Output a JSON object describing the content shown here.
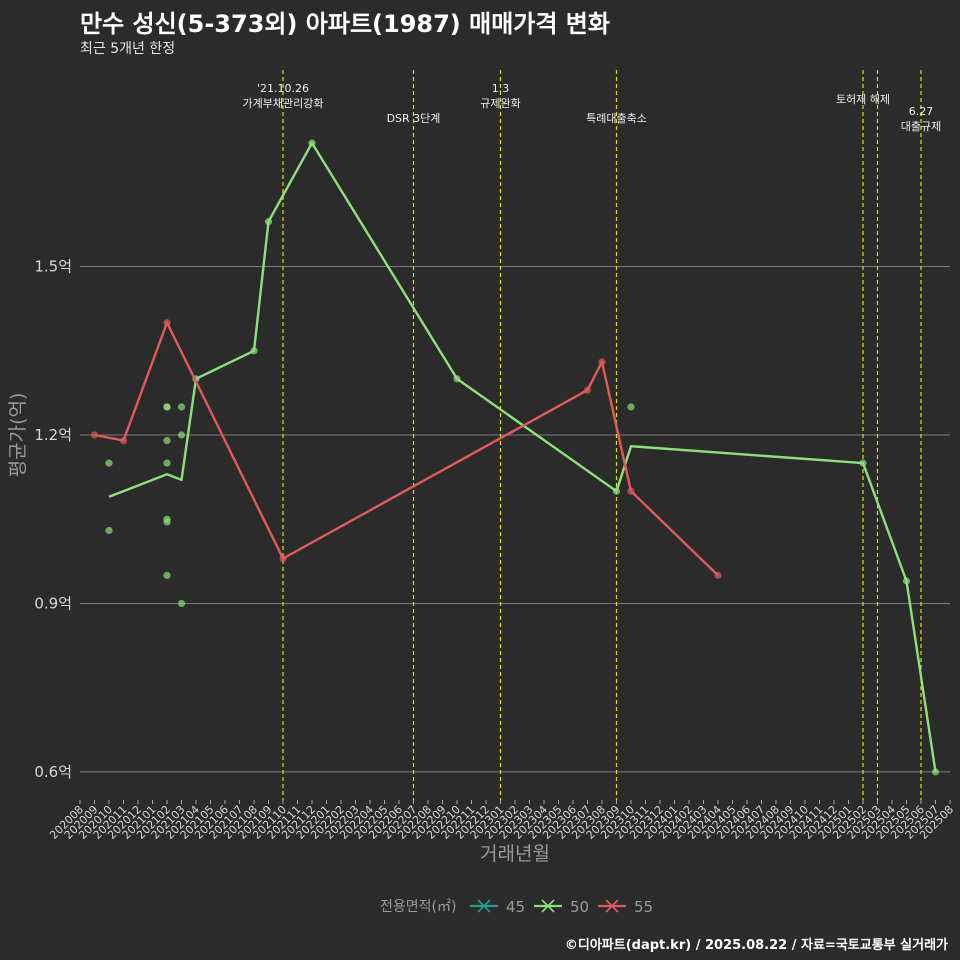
{
  "header": {
    "title": "만수 성신(5-373외) 아파트(1987) 매매가격 변화",
    "subtitle": "최근 5개년 한정"
  },
  "caption": "©디아파트(dapt.kr) / 2025.08.22 / 자료=국토교통부 실거래가",
  "colors": {
    "background": "#2b2b2b",
    "grid": "#7a7a7a",
    "event_line": "#e0e000",
    "series_45": "#2a9d8f",
    "series_50": "#8fe07c",
    "series_55": "#e05b5b"
  },
  "chart_data": {
    "type": "line",
    "xlabel": "거래년월",
    "ylabel": "평균가(억)",
    "ylim": [
      0.55,
      1.85
    ],
    "yticks": [
      0.6,
      0.9,
      1.2,
      1.5
    ],
    "ytick_labels": [
      "0.6억",
      "0.9억",
      "1.2억",
      "1.5억"
    ],
    "grid": true,
    "legend_position": "bottom",
    "legend_title": "전용면적(㎡)",
    "x_categories": [
      "202008",
      "202009",
      "202010",
      "202011",
      "202012",
      "202101",
      "202102",
      "202103",
      "202104",
      "202105",
      "202106",
      "202107",
      "202108",
      "202109",
      "202110",
      "202111",
      "202112",
      "202201",
      "202202",
      "202203",
      "202204",
      "202205",
      "202206",
      "202207",
      "202208",
      "202209",
      "202210",
      "202211",
      "202212",
      "202301",
      "202302",
      "202303",
      "202304",
      "202305",
      "202306",
      "202307",
      "202308",
      "202309",
      "202310",
      "202311",
      "202312",
      "202401",
      "202402",
      "202403",
      "202404",
      "202405",
      "202406",
      "202407",
      "202408",
      "202409",
      "202410",
      "202411",
      "202412",
      "202501",
      "202502",
      "202503",
      "202504",
      "202505",
      "202506",
      "202507",
      "202508"
    ],
    "series": [
      {
        "name": "45",
        "line": [],
        "points": []
      },
      {
        "name": "50",
        "line": [
          [
            "202010",
            1.09
          ],
          [
            "202102",
            1.13
          ],
          [
            "202103",
            1.12
          ],
          [
            "202104",
            1.3
          ],
          [
            "202108",
            1.35
          ],
          [
            "202109",
            1.58
          ],
          [
            "202112",
            1.72
          ],
          [
            "202210",
            1.3
          ],
          [
            "202309",
            1.1
          ],
          [
            "202310",
            1.18
          ],
          [
            "202502",
            1.15
          ],
          [
            "202505",
            0.94
          ],
          [
            "202507",
            0.6
          ]
        ],
        "points": [
          [
            "202010",
            1.15
          ],
          [
            "202010",
            1.03
          ],
          [
            "202102",
            1.25
          ],
          [
            "202102",
            1.25
          ],
          [
            "202102",
            1.19
          ],
          [
            "202102",
            1.15
          ],
          [
            "202102",
            1.05
          ],
          [
            "202102",
            1.045
          ],
          [
            "202102",
            0.95
          ],
          [
            "202103",
            1.25
          ],
          [
            "202103",
            1.2
          ],
          [
            "202103",
            0.9
          ],
          [
            "202104",
            1.3
          ],
          [
            "202108",
            1.35
          ],
          [
            "202109",
            1.58
          ],
          [
            "202112",
            1.72
          ],
          [
            "202210",
            1.3
          ],
          [
            "202309",
            1.1
          ],
          [
            "202310",
            1.25
          ],
          [
            "202502",
            1.15
          ],
          [
            "202505",
            0.94
          ],
          [
            "202507",
            0.6
          ]
        ]
      },
      {
        "name": "55",
        "line": [
          [
            "202009",
            1.2
          ],
          [
            "202011",
            1.19
          ],
          [
            "202102",
            1.4
          ],
          [
            "202110",
            0.98
          ],
          [
            "202307",
            1.28
          ],
          [
            "202308",
            1.33
          ],
          [
            "202310",
            1.1
          ],
          [
            "202404",
            0.95
          ]
        ],
        "points": [
          [
            "202009",
            1.2
          ],
          [
            "202011",
            1.19
          ],
          [
            "202102",
            1.4
          ],
          [
            "202110",
            0.98
          ],
          [
            "202307",
            1.28
          ],
          [
            "202308",
            1.33
          ],
          [
            "202310",
            1.1
          ],
          [
            "202404",
            0.95
          ]
        ]
      }
    ],
    "events": [
      {
        "x": "202110",
        "label": "'21.10.26\n가계부채관리강화"
      },
      {
        "x": "202207",
        "label": "DSR 3단계"
      },
      {
        "x": "202301",
        "label": "1.3\n규제완화"
      },
      {
        "x": "202309",
        "label": "특례대출축소"
      },
      {
        "x": "202502",
        "label": "토허제 해제"
      },
      {
        "x": "202503",
        "label": ""
      },
      {
        "x": "202506",
        "label": "6.27\n대출규제"
      }
    ]
  }
}
